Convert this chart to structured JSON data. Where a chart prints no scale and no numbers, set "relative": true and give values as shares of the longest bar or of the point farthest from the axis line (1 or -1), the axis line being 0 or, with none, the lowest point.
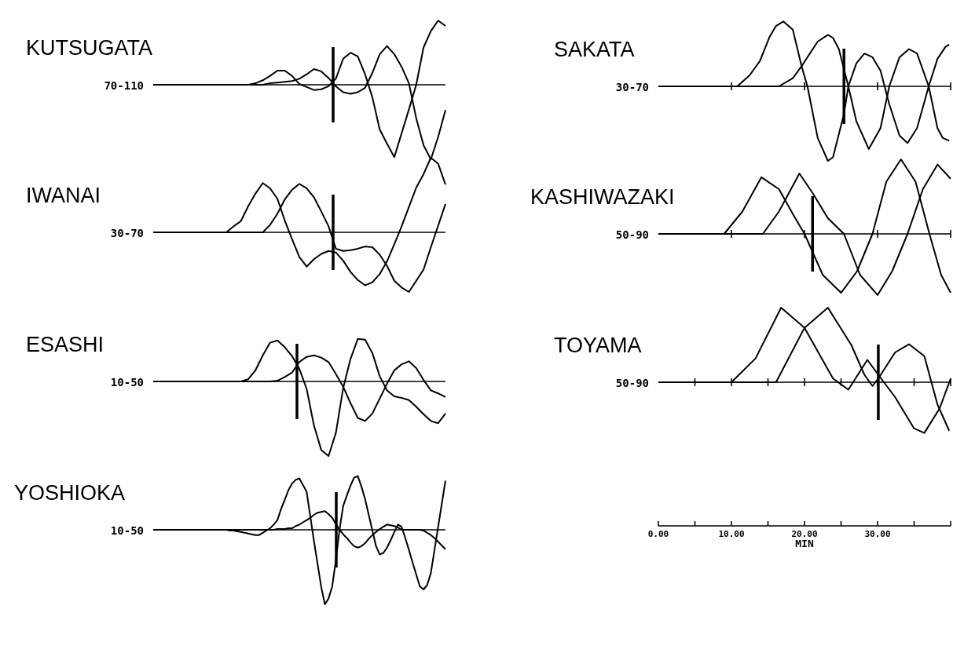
{
  "chart_data": [
    {
      "type": "line",
      "title": "KUTSUGATA",
      "subtitle": "70-110",
      "relative": true,
      "categories": [
        null,
        null,
        null,
        null,
        null,
        null,
        null,
        null,
        null,
        null,
        null,
        null,
        null,
        null,
        null,
        null,
        null,
        null,
        null,
        null,
        null,
        null,
        null,
        null,
        null,
        null,
        null,
        null,
        null,
        null,
        null,
        null,
        null,
        null,
        null,
        null,
        null,
        null,
        null,
        null,
        null
      ],
      "series": [
        {
          "color": "#000000",
          "values": [
            0,
            0,
            0,
            0,
            0,
            0,
            0,
            0,
            0,
            0,
            0,
            0,
            0,
            0,
            0.02,
            0.06,
            0.12,
            0.19,
            0.19,
            0.12,
            0.01,
            -0.03,
            -0.07,
            -0.06,
            -0.02,
            0.08,
            0.35,
            0.43,
            0.38,
            0.14,
            -0.17,
            -0.6,
            -0.79,
            -0.97,
            -0.65,
            -0.33,
            0,
            0.5,
            0.72,
            0.86,
            0.79
          ]
        },
        {
          "color": "#000000",
          "values": [
            0,
            0,
            0,
            0,
            0,
            0,
            0,
            0,
            0,
            0,
            0,
            0,
            0,
            0,
            0,
            0,
            0.02,
            0.03,
            0.04,
            0.05,
            0.08,
            0.14,
            0.21,
            0.18,
            0.09,
            -0.02,
            -0.1,
            -0.12,
            -0.1,
            -0.04,
            0.16,
            0.41,
            0.52,
            0.41,
            0.24,
            0.02,
            -0.45,
            -0.81,
            -1,
            -0.7,
            -0.34
          ]
        }
      ]
    },
    {
      "type": "line",
      "title": "SAKATA",
      "subtitle": "30-70",
      "relative": true,
      "xlim": [
        0,
        40
      ],
      "xticks": [
        {
          "value": 10,
          "label": null
        },
        {
          "value": 20,
          "label": null
        },
        {
          "value": 30,
          "label": null
        },
        {
          "value": 40,
          "label": null
        }
      ],
      "tick_labels": false,
      "ref_lines": [
        {
          "axis": "x",
          "value": 25.4
        }
      ],
      "series": [
        {
          "color": "#000000",
          "x": [
            0,
            10.8,
            12.5,
            13.9,
            15.2,
            16.1,
            17.1,
            18.4,
            19.6,
            20.4,
            21.8,
            23.2,
            23.9,
            25.4,
            26,
            27.1,
            28.2,
            29.3,
            30.4,
            31.6,
            33,
            34.1,
            35.4,
            37,
            38.2,
            39.3,
            39.8
          ],
          "values": [
            0,
            0,
            0.15,
            0.34,
            0.66,
            0.81,
            0.87,
            0.76,
            0.27,
            0,
            -0.69,
            -1,
            -0.95,
            -0.37,
            0,
            0.31,
            0.44,
            0.39,
            0.21,
            -0.24,
            -0.66,
            -0.76,
            -0.56,
            0,
            0.37,
            0.53,
            0.56
          ]
        },
        {
          "color": "#000000",
          "x": [
            0,
            16.5,
            18.4,
            19.6,
            21.8,
            23.2,
            23.9,
            24.7,
            26,
            27.1,
            28.8,
            30.4,
            31.6,
            33,
            34.3,
            35.4,
            37,
            38.2,
            38.9,
            39.8
          ],
          "values": [
            0,
            0,
            0.11,
            0.27,
            0.6,
            0.69,
            0.65,
            0.5,
            0,
            -0.47,
            -0.84,
            -0.56,
            0,
            0.39,
            0.5,
            0.44,
            0,
            -0.56,
            -0.69,
            -0.73
          ]
        }
      ]
    },
    {
      "type": "line",
      "title": "IWANAI",
      "subtitle": "30-70",
      "relative": true,
      "categories": [
        null,
        null,
        null,
        null,
        null,
        null,
        null,
        null,
        null,
        null,
        null,
        null,
        null,
        null,
        null,
        null,
        null,
        null,
        null,
        null,
        null,
        null,
        null,
        null,
        null,
        null,
        null,
        null,
        null,
        null,
        null,
        null,
        null,
        null,
        null,
        null,
        null,
        null,
        null,
        null,
        null
      ],
      "series": [
        {
          "color": "#000000",
          "values": [
            0,
            0,
            0,
            0,
            0,
            0,
            0,
            0,
            0,
            0,
            0,
            0.08,
            0.15,
            0.35,
            0.52,
            0.66,
            0.59,
            0.45,
            0.16,
            -0.09,
            -0.33,
            -0.46,
            -0.36,
            -0.29,
            -0.25,
            -0.27,
            -0.38,
            -0.53,
            -0.64,
            -0.71,
            -0.67,
            -0.56,
            -0.39,
            -0.16,
            0.08,
            0.34,
            0.6,
            0.78,
            1,
            0.92,
            0.64
          ]
        },
        {
          "color": "#000000",
          "values": [
            0,
            0,
            0,
            0,
            0,
            0,
            0,
            0,
            0,
            0,
            0,
            0,
            0,
            0,
            0,
            0,
            0.1,
            0.25,
            0.44,
            0.57,
            0.65,
            0.59,
            0.47,
            0.28,
            0.08,
            -0.22,
            -0.25,
            -0.24,
            -0.22,
            -0.19,
            -0.2,
            -0.3,
            -0.45,
            -0.65,
            -0.74,
            -0.8,
            -0.65,
            -0.5,
            -0.2,
            0.09,
            0.38
          ]
        }
      ]
    },
    {
      "type": "line",
      "title": "KASHIWAZAKI",
      "subtitle": "50-90",
      "relative": true,
      "xlim": [
        0,
        40
      ],
      "xticks": [
        {
          "value": 10,
          "label": null
        },
        {
          "value": 20,
          "label": null
        },
        {
          "value": 30,
          "label": null
        },
        {
          "value": 40,
          "label": null
        }
      ],
      "tick_labels": false,
      "ref_lines": [
        {
          "axis": "x",
          "value": 21.1
        }
      ],
      "series": [
        {
          "color": "#000000",
          "x": [
            0,
            9,
            11.5,
            14.1,
            16.5,
            18.5,
            20,
            22.5,
            25,
            27.2,
            29.3,
            31.2,
            33.2,
            35.2,
            37.1,
            38.7,
            40
          ],
          "values": [
            0,
            0,
            0.3,
            0.76,
            0.6,
            0.25,
            0,
            -0.55,
            -0.79,
            -0.5,
            0,
            0.7,
            1,
            0.7,
            0,
            -0.55,
            -0.79
          ]
        },
        {
          "color": "#000000",
          "x": [
            0,
            14.3,
            16.5,
            19.3,
            21.1,
            23.2,
            25.4,
            27.6,
            30,
            32,
            34.1,
            36.2,
            38.2,
            40
          ],
          "values": [
            0,
            0,
            0.3,
            0.81,
            0.55,
            0.21,
            0,
            -0.55,
            -0.82,
            -0.5,
            0,
            0.6,
            0.93,
            0.74
          ]
        }
      ]
    },
    {
      "type": "line",
      "title": "ESASHI",
      "subtitle": "10-50",
      "relative": true,
      "categories": [
        null,
        null,
        null,
        null,
        null,
        null,
        null,
        null,
        null,
        null,
        null,
        null,
        null,
        null,
        null,
        null,
        null,
        null,
        null,
        null,
        null,
        null,
        null,
        null,
        null,
        null,
        null,
        null,
        null,
        null,
        null,
        null,
        null,
        null,
        null,
        null,
        null,
        null,
        null,
        null,
        null
      ],
      "series": [
        {
          "color": "#000000",
          "values": [
            0,
            0,
            0,
            0,
            0,
            0,
            0,
            0,
            0,
            0,
            0,
            0,
            0,
            0.03,
            0.15,
            0.35,
            0.52,
            0.55,
            0.46,
            0.34,
            0.17,
            -0.1,
            -0.59,
            -0.92,
            -1,
            -0.69,
            -0.09,
            0.3,
            0.57,
            0.56,
            0.38,
            0.07,
            -0.12,
            -0.2,
            -0.22,
            -0.25,
            -0.34,
            -0.44,
            -0.53,
            -0.56,
            -0.43
          ]
        },
        {
          "color": "#000000",
          "values": [
            0,
            0,
            0,
            0,
            0,
            0,
            0,
            0,
            0,
            0,
            0,
            0,
            0,
            0,
            0,
            0,
            0,
            0.01,
            0.06,
            0.12,
            0.26,
            0.33,
            0.35,
            0.32,
            0.26,
            0.1,
            -0.07,
            -0.29,
            -0.49,
            -0.53,
            -0.43,
            -0.23,
            -0.03,
            0.15,
            0.23,
            0.27,
            0.18,
            0.02,
            -0.12,
            -0.16,
            -0.21
          ]
        }
      ]
    },
    {
      "type": "line",
      "title": "TOYAMA",
      "subtitle": "50-90",
      "xlabel": "MIN",
      "relative": true,
      "xlim": [
        0,
        40
      ],
      "xticks": [
        {
          "value": 0,
          "label": "0.00"
        },
        {
          "value": 5,
          "label": null
        },
        {
          "value": 10,
          "label": "10.00"
        },
        {
          "value": 15,
          "label": null
        },
        {
          "value": 20,
          "label": "20.00"
        },
        {
          "value": 25,
          "label": null
        },
        {
          "value": 30,
          "label": "30.00"
        },
        {
          "value": 35,
          "label": null
        },
        {
          "value": 40,
          "label": null
        }
      ],
      "tick_labels": "x",
      "ref_lines": [
        {
          "axis": "x",
          "value": 30.1
        }
      ],
      "series": [
        {
          "color": "#000000",
          "x": [
            0,
            10,
            13.3,
            16.8,
            20,
            23.9,
            26,
            28.6,
            30.1,
            32.4,
            35,
            36.4,
            38.5,
            40
          ],
          "values": [
            0,
            0,
            0.32,
            1,
            0.73,
            0.05,
            -0.1,
            0.3,
            0.1,
            -0.2,
            -0.62,
            -0.68,
            -0.35,
            0.05
          ]
        },
        {
          "color": "#000000",
          "x": [
            0,
            16.1,
            20,
            23.2,
            26.4,
            28.2,
            29.3,
            30.1,
            32.4,
            34.3,
            36.4,
            38.2,
            39.8
          ],
          "values": [
            0,
            0,
            0.73,
            1,
            0.5,
            0.1,
            -0.05,
            0.05,
            0.4,
            0.51,
            0.35,
            -0.3,
            -0.65
          ]
        }
      ]
    },
    {
      "type": "line",
      "title": "YOSHIOKA",
      "subtitle": "10-50",
      "relative": true,
      "categories": [
        null,
        null,
        null,
        null,
        null,
        null,
        null,
        null,
        null,
        null,
        null,
        null,
        null,
        null,
        null,
        null,
        null,
        null,
        null,
        null,
        null,
        null,
        null,
        null,
        null,
        null,
        null,
        null,
        null,
        null,
        null,
        null,
        null,
        null,
        null,
        null,
        null,
        null,
        null,
        null,
        null,
        null,
        null,
        null,
        null,
        null,
        null,
        null,
        null,
        null,
        null,
        null,
        null,
        null,
        null,
        null,
        null,
        null,
        null,
        null,
        null,
        null,
        null,
        null,
        null,
        null,
        null,
        null,
        null,
        null,
        null,
        null,
        null,
        null,
        null,
        null,
        null,
        null,
        null,
        null,
        null
      ],
      "series": [
        {
          "color": "#000000",
          "values": [
            0,
            0,
            0,
            0,
            0,
            0,
            0,
            0,
            0,
            0,
            0,
            0,
            0,
            0,
            0,
            0,
            0,
            0,
            0,
            0,
            0,
            -0.01,
            -0.01,
            -0.02,
            -0.03,
            -0.04,
            -0.05,
            -0.06,
            -0.07,
            -0.07,
            -0.04,
            -0.01,
            0.02,
            0.07,
            0.13,
            0.28,
            0.4,
            0.53,
            0.62,
            0.67,
            0.69,
            0.6,
            0.51,
            0.18,
            -0.15,
            -0.46,
            -0.77,
            -1,
            -0.92,
            -0.76,
            -0.41,
            0,
            0.32,
            0.46,
            0.59,
            0.7,
            0.72,
            0.58,
            0.41,
            0.2,
            -0.01,
            -0.22,
            -0.33,
            -0.31,
            -0.24,
            -0.14,
            -0.03,
            0.07,
            0.04,
            -0.11,
            -0.27,
            -0.44,
            -0.6,
            -0.76,
            -0.8,
            -0.74,
            -0.58,
            -0.27,
            0.04,
            0.35,
            0.66
          ]
        },
        {
          "color": "#000000",
          "values": [
            0,
            0,
            0,
            0,
            0,
            0,
            0,
            0,
            0,
            0,
            0,
            0,
            0,
            0,
            0,
            0,
            0,
            0,
            0,
            0,
            0,
            0,
            0,
            0,
            0,
            0,
            0,
            0,
            0,
            0,
            0,
            0,
            0,
            0,
            0.01,
            0.01,
            0.01,
            0.02,
            0.02,
            0.05,
            0.07,
            0.1,
            0.13,
            0.16,
            0.2,
            0.23,
            0.24,
            0.25,
            0.21,
            0.16,
            0.08,
            0,
            -0.06,
            -0.11,
            -0.17,
            -0.22,
            -0.24,
            -0.22,
            -0.18,
            -0.12,
            -0.07,
            -0.03,
            0.01,
            0.04,
            0.07,
            0.06,
            0.05,
            0.03,
            0,
            0,
            0,
            0,
            0,
            0,
            -0.01,
            -0.04,
            -0.07,
            -0.11,
            -0.16,
            -0.21,
            -0.26
          ]
        }
      ]
    }
  ]
}
